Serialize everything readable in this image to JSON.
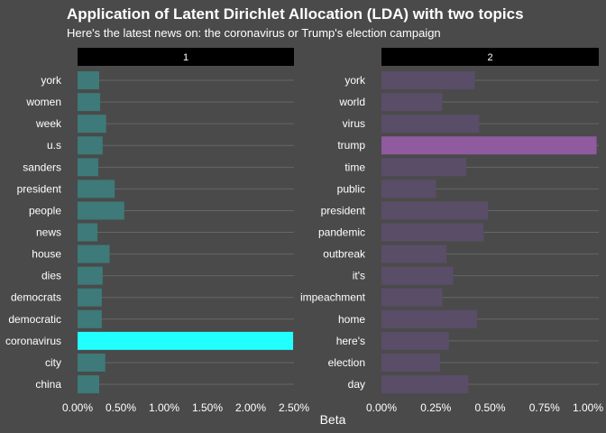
{
  "chart_data": {
    "type": "bar",
    "orientation": "horizontal",
    "title": "Application of Latent Dirichlet Allocation (LDA) with two topics",
    "subtitle": "Here's the latest news on: the coronavirus or Trump's election campaign",
    "xlabel": "Beta",
    "grid": true,
    "colors": {
      "background": "#4a4a4a",
      "strip": "#000000",
      "strip_text": "#ffffff",
      "text": "#ffffff",
      "gridline": "#666666",
      "topic1_bar": "#3d7a79",
      "topic1_highlight": "#22ffff",
      "topic2_bar": "#5a4d68",
      "topic2_highlight": "#8f5a9e"
    },
    "panels": [
      {
        "label": "1",
        "xlim": [
          0,
          0.025
        ],
        "ticks": [
          0,
          0.005,
          0.01,
          0.015,
          0.02,
          0.025
        ],
        "tick_labels": [
          "0.00%",
          "0.50%",
          "1.00%",
          "1.50%",
          "2.00%",
          "2.50%"
        ],
        "categories": [
          "york",
          "women",
          "week",
          "u.s",
          "sanders",
          "president",
          "people",
          "news",
          "house",
          "dies",
          "democrats",
          "democratic",
          "coronavirus",
          "city",
          "china"
        ],
        "values": [
          0.0025,
          0.0026,
          0.0033,
          0.0029,
          0.0024,
          0.0043,
          0.0054,
          0.0023,
          0.0037,
          0.0029,
          0.0028,
          0.0028,
          0.0249,
          0.0032,
          0.0025
        ],
        "highlight": "coronavirus"
      },
      {
        "label": "2",
        "xlim": [
          0,
          0.01
        ],
        "ticks": [
          0,
          0.0025,
          0.005,
          0.0075,
          0.01
        ],
        "tick_labels": [
          "0.00%",
          "0.25%",
          "0.50%",
          "0.75%",
          "1.00%"
        ],
        "categories": [
          "york",
          "world",
          "virus",
          "trump",
          "time",
          "public",
          "president",
          "pandemic",
          "outbreak",
          "it's",
          "impeachment",
          "home",
          "here's",
          "election",
          "day"
        ],
        "values": [
          0.0043,
          0.0028,
          0.0045,
          0.0099,
          0.0039,
          0.0025,
          0.0049,
          0.0047,
          0.003,
          0.0033,
          0.0028,
          0.0044,
          0.0031,
          0.0027,
          0.004
        ],
        "highlight": "trump"
      }
    ]
  }
}
